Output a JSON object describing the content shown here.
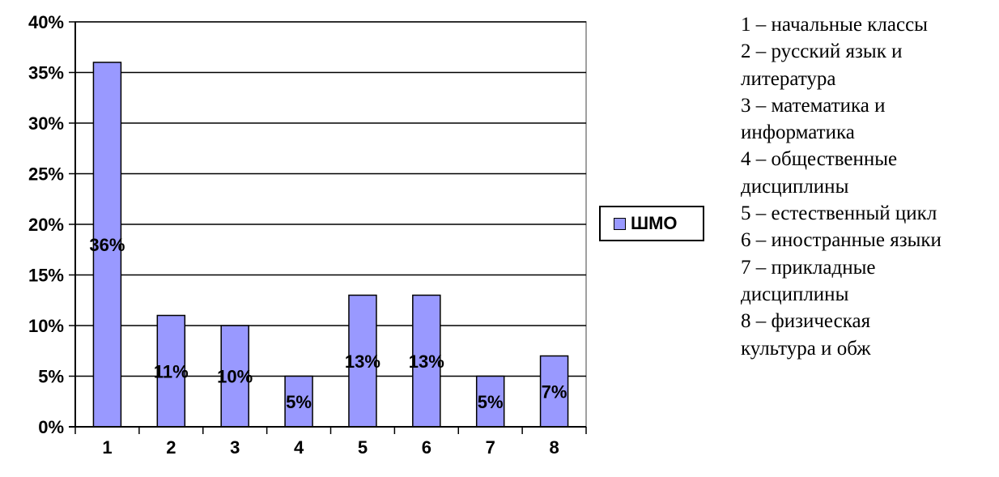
{
  "chart_data": {
    "type": "bar",
    "categories": [
      "1",
      "2",
      "3",
      "4",
      "5",
      "6",
      "7",
      "8"
    ],
    "series": [
      {
        "name": "ШМО",
        "values": [
          36,
          11,
          10,
          5,
          13,
          13,
          5,
          7
        ],
        "color": "#9999ff"
      }
    ],
    "data_labels": [
      "36%",
      "11%",
      "10%",
      "5%",
      "13%",
      "13%",
      "5%",
      "7%"
    ],
    "yticks": [
      "0%",
      "5%",
      "10%",
      "15%",
      "20%",
      "25%",
      "30%",
      "35%",
      "40%"
    ],
    "ylim": [
      0,
      40
    ],
    "grid": true,
    "legend_position": "right",
    "title": "",
    "xlabel": "",
    "ylabel": ""
  },
  "category_legend": [
    "1 – начальные классы",
    "2 – русский язык и",
    "литература",
    "3 – математика и",
    "информатика",
    "4 – общественные",
    "дисциплины",
    "5 – естественный цикл",
    "6 – иностранные языки",
    "7 – прикладные",
    "дисциплины",
    "8 – физическая",
    "культура и обж"
  ]
}
